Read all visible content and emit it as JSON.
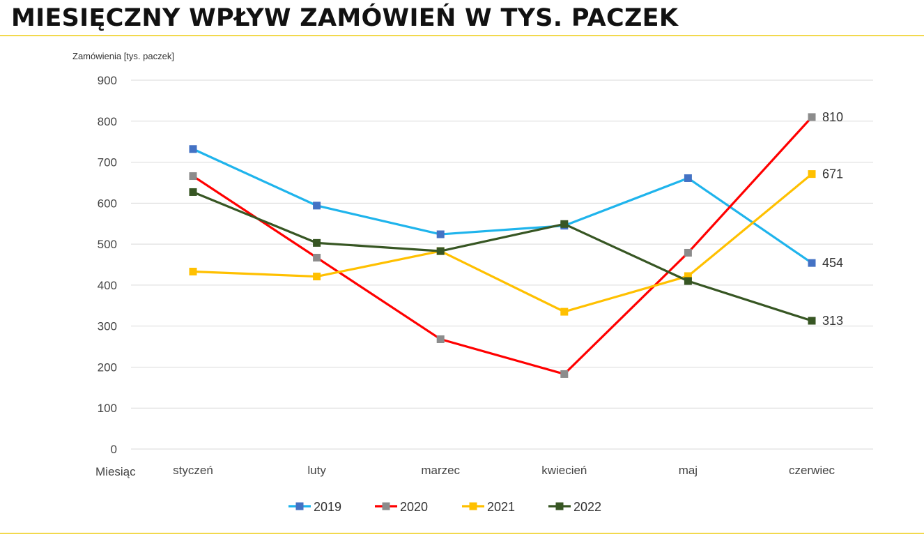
{
  "title": "MIESIĘCZNY WPŁYW ZAMÓWIEŃ W TYS. PACZEK",
  "colors": {
    "rule": "#f2d94e",
    "grid": "#d9d9d9",
    "background": "#ffffff"
  },
  "chart_data": {
    "type": "line",
    "ylabel": "Zamówienia [tys. paczek]",
    "xlabel": "Miesiąc",
    "categories": [
      "styczeń",
      "luty",
      "marzec",
      "kwiecień",
      "maj",
      "czerwiec"
    ],
    "ylim": [
      0,
      900
    ],
    "yticks": [
      0,
      100,
      200,
      300,
      400,
      500,
      600,
      700,
      800,
      900
    ],
    "grid": true,
    "legend_position": "bottom",
    "series": [
      {
        "name": "2019",
        "values": [
          732,
          594,
          524,
          545,
          661,
          454
        ],
        "line_color": "#1fb4ec",
        "marker_color": "#4472c4",
        "end_label": "454"
      },
      {
        "name": "2020",
        "values": [
          666,
          467,
          268,
          183,
          479,
          810
        ],
        "line_color": "#ff0000",
        "marker_color": "#8c8c8c",
        "end_label": "810"
      },
      {
        "name": "2021",
        "values": [
          433,
          421,
          483,
          335,
          422,
          671
        ],
        "line_color": "#ffc000",
        "marker_color": "#ffc000",
        "end_label": "671"
      },
      {
        "name": "2022",
        "values": [
          627,
          503,
          483,
          549,
          410,
          313
        ],
        "line_color": "#375623",
        "marker_color": "#375623",
        "end_label": "313"
      }
    ]
  }
}
